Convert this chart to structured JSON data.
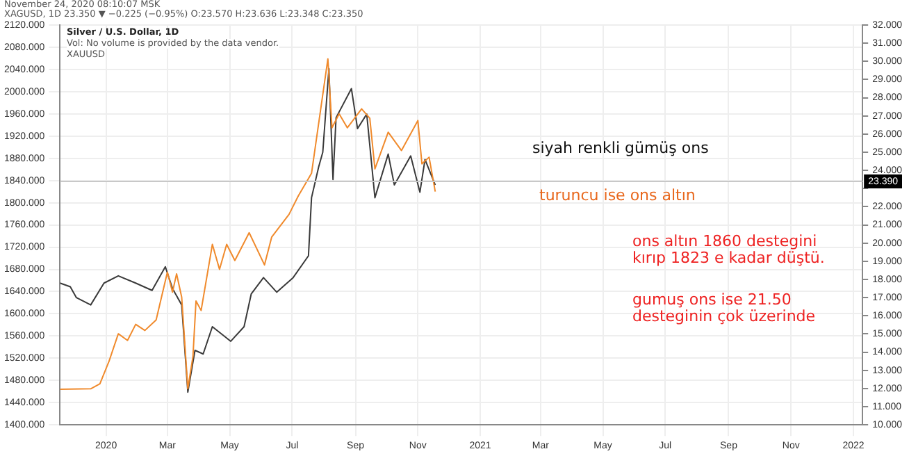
{
  "chart_data": {
    "type": "line",
    "annotations": [
      "November 24, 2020 08:10:07 MSK",
      "XAGUSD, 1D 23.350 ▼ −0.225 (−0.95%) O:23.570 H:23.636 L:23.348 C:23.350",
      "Silver / U.S. Dollar, 1D",
      "Vol: No volume is provided by the data vendor.",
      "XAUUSD",
      "siyah renkli gümüş ons",
      "turuncu ise ons altın",
      "ons altın 1860 destegini kırıp 1823 e kadar düştü.",
      "gumuş ons ise 21.50 desteginin çok üzerinde"
    ],
    "series": [
      {
        "color": "#f08a2c",
        "axis": "y",
        "x": [
          "2019-11-17",
          "2019-12-17",
          "2019-12-26",
          "2020-01-04",
          "2020-01-13",
          "2020-01-22",
          "2020-01-30",
          "2020-02-08",
          "2020-02-19",
          "2020-03-01",
          "2020-03-06",
          "2020-03-10",
          "2020-03-15",
          "2020-03-21",
          "2020-03-26",
          "2020-03-29",
          "2020-04-03",
          "2020-04-14",
          "2020-04-21",
          "2020-04-28",
          "2020-05-06",
          "2020-05-20",
          "2020-06-04",
          "2020-06-11",
          "2020-06-28",
          "2020-07-07",
          "2020-07-20",
          "2020-07-29",
          "2020-08-05",
          "2020-08-09",
          "2020-08-16",
          "2020-08-24",
          "2020-09-07",
          "2020-09-15",
          "2020-09-20",
          "2020-10-03",
          "2020-10-16",
          "2020-11-01",
          "2020-11-05",
          "2020-11-12",
          "2020-11-18"
        ],
        "values": [
          1464,
          1465,
          1474,
          1515,
          1564,
          1552,
          1581,
          1570,
          1589,
          1675,
          1639,
          1672,
          1630,
          1465,
          1523,
          1623,
          1606,
          1725,
          1680,
          1725,
          1696,
          1746,
          1688,
          1738,
          1779,
          1812,
          1853,
          1969,
          2059,
          1935,
          1960,
          1935,
          1969,
          1952,
          1861,
          1927,
          1894,
          1948,
          1870,
          1882,
          1820
        ]
      },
      {
        "color": "#3a3a3a",
        "axis": "y2",
        "x": [
          "2019-11-17",
          "2019-11-27",
          "2019-12-03",
          "2019-12-17",
          "2019-12-30",
          "2020-01-13",
          "2020-01-30",
          "2020-02-15",
          "2020-02-28",
          "2020-03-06",
          "2020-03-15",
          "2020-03-21",
          "2020-03-28",
          "2020-04-05",
          "2020-04-14",
          "2020-05-02",
          "2020-05-15",
          "2020-05-22",
          "2020-06-03",
          "2020-06-16",
          "2020-07-02",
          "2020-07-17",
          "2020-07-20",
          "2020-07-27",
          "2020-07-31",
          "2020-08-06",
          "2020-08-10",
          "2020-08-13",
          "2020-08-28",
          "2020-09-03",
          "2020-09-12",
          "2020-09-20",
          "2020-10-03",
          "2020-10-09",
          "2020-10-25",
          "2020-11-03",
          "2020-11-08",
          "2020-11-18"
        ],
        "values": [
          17.8,
          17.6,
          17.0,
          16.6,
          17.8,
          18.2,
          17.8,
          17.4,
          18.7,
          17.5,
          16.6,
          11.8,
          14.1,
          13.9,
          15.4,
          14.6,
          15.4,
          17.2,
          18.1,
          17.3,
          18.1,
          19.3,
          22.5,
          24.2,
          25.0,
          29.6,
          23.5,
          26.9,
          28.5,
          26.3,
          27.1,
          22.5,
          24.9,
          23.2,
          24.8,
          22.8,
          24.6,
          23.2
        ]
      }
    ],
    "xlim": [
      "2019-11-17",
      "2022-01-10"
    ],
    "xticks": [
      {
        "value": "2020-01-01",
        "label": "2020"
      },
      {
        "value": "2020-03-01",
        "label": "Mar"
      },
      {
        "value": "2020-05-01",
        "label": "May"
      },
      {
        "value": "2020-07-01",
        "label": "Jul"
      },
      {
        "value": "2020-09-01",
        "label": "Sep"
      },
      {
        "value": "2020-11-01",
        "label": "Nov"
      },
      {
        "value": "2021-01-01",
        "label": "2021"
      },
      {
        "value": "2021-03-01",
        "label": "Mar"
      },
      {
        "value": "2021-05-01",
        "label": "May"
      },
      {
        "value": "2021-07-01",
        "label": "Jul"
      },
      {
        "value": "2021-09-01",
        "label": "Sep"
      },
      {
        "value": "2021-11-01",
        "label": "Nov"
      },
      {
        "value": "2022-01-01",
        "label": "2022"
      }
    ],
    "ylim": [
      1400,
      2120
    ],
    "yticks": [
      {
        "value": 1400,
        "label": "1400.000"
      },
      {
        "value": 1440,
        "label": "1440.000"
      },
      {
        "value": 1480,
        "label": "1480.000"
      },
      {
        "value": 1520,
        "label": "1520.000"
      },
      {
        "value": 1560,
        "label": "1560.000"
      },
      {
        "value": 1600,
        "label": "1600.000"
      },
      {
        "value": 1640,
        "label": "1640.000"
      },
      {
        "value": 1680,
        "label": "1680.000"
      },
      {
        "value": 1720,
        "label": "1720.000"
      },
      {
        "value": 1760,
        "label": "1760.000"
      },
      {
        "value": 1800,
        "label": "1800.000"
      },
      {
        "value": 1840,
        "label": "1840.000"
      },
      {
        "value": 1880,
        "label": "1880.000"
      },
      {
        "value": 1920,
        "label": "1920.000"
      },
      {
        "value": 1960,
        "label": "1960.000"
      },
      {
        "value": 2000,
        "label": "2000.000"
      },
      {
        "value": 2040,
        "label": "2040.000"
      },
      {
        "value": 2080,
        "label": "2080.000"
      },
      {
        "value": 2120,
        "label": "2120.000"
      }
    ],
    "y2lim": [
      10,
      32
    ],
    "y2ticks": [
      {
        "value": 10,
        "label": "10.000"
      },
      {
        "value": 11,
        "label": "11.000"
      },
      {
        "value": 12,
        "label": "12.000"
      },
      {
        "value": 13,
        "label": "13.000"
      },
      {
        "value": 14,
        "label": "14.000"
      },
      {
        "value": 15,
        "label": "15.000"
      },
      {
        "value": 16,
        "label": "16.000"
      },
      {
        "value": 17,
        "label": "17.000"
      },
      {
        "value": 18,
        "label": "18.000"
      },
      {
        "value": 19,
        "label": "19.000"
      },
      {
        "value": 20,
        "label": "20.000"
      },
      {
        "value": 21,
        "label": "21.000"
      },
      {
        "value": 22,
        "label": "22.000"
      },
      {
        "value": 23,
        "label": null
      },
      {
        "value": 24,
        "label": "24.000"
      },
      {
        "value": 25,
        "label": "25.000"
      },
      {
        "value": 26,
        "label": "26.000"
      },
      {
        "value": 27,
        "label": "27.000"
      },
      {
        "value": 28,
        "label": "28.000"
      },
      {
        "value": 29,
        "label": "29.000"
      },
      {
        "value": 30,
        "label": "30.000"
      },
      {
        "value": 31,
        "label": "31.000"
      },
      {
        "value": 32,
        "label": "32.000"
      }
    ],
    "ref_lines": [
      {
        "axis": "y2",
        "value": 23.39,
        "label": "23.390"
      }
    ],
    "grid": true,
    "legend": false,
    "marker": "none",
    "line_style": "solid"
  }
}
